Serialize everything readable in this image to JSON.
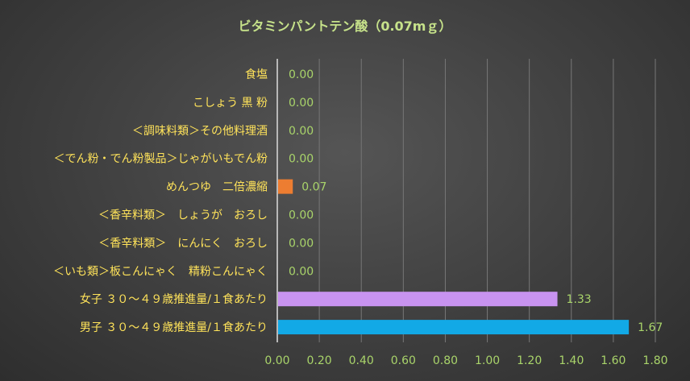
{
  "chart_data": {
    "type": "bar",
    "orientation": "horizontal",
    "title": "ビタミンパントテン酸（0.07mｇ）",
    "categories": [
      "食塩",
      "こしょう 黒 粉",
      "＜調味料類＞その他料理酒",
      "＜でん粉・でん粉製品＞じゃがいもでん粉",
      "めんつゆ　二倍濃縮",
      "＜香辛料類＞　しょうが　おろし",
      "＜香辛料類＞　にんにく　おろし",
      "＜いも類＞板こんにゃく　精粉こんにゃく",
      "女子 ３０～４９歳推進量/１食あたり",
      "男子 ３０～４９歳推進量/１食あたり"
    ],
    "values": [
      0.0,
      0.0,
      0.0,
      0.0,
      0.07,
      0.0,
      0.0,
      0.0,
      1.33,
      1.67
    ],
    "value_labels": [
      "0.00",
      "0.00",
      "0.00",
      "0.00",
      "0.07",
      "0.00",
      "0.00",
      "0.00",
      "1.33",
      "1.67"
    ],
    "bar_colors": [
      "#ed7d31",
      "#ed7d31",
      "#ed7d31",
      "#ed7d31",
      "#ed7d31",
      "#ed7d31",
      "#ed7d31",
      "#ed7d31",
      "#c893f0",
      "#12a9e6"
    ],
    "xlim": [
      0,
      1.8
    ],
    "xticks": [
      "0.00",
      "0.20",
      "0.40",
      "0.60",
      "0.80",
      "1.00",
      "1.20",
      "1.40",
      "1.60",
      "1.80"
    ],
    "grid": true,
    "legend": "none",
    "colors": {
      "title": "#c6e28a",
      "category_text": "#ffe35a",
      "value_text": "#a9d46a",
      "tick_text": "#a9d46a",
      "gridline": "#777777"
    }
  }
}
